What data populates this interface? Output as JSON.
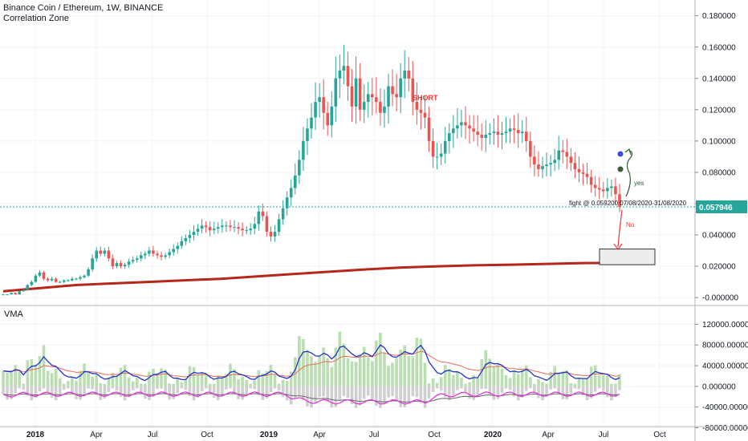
{
  "header": {
    "title": "Binance Coin / Ethereum, 1W, BINANCE",
    "indicator": "Correlation Zone"
  },
  "vma_label": "VMA",
  "colors": {
    "up": "#26a69a",
    "down": "#ef5350",
    "ma_long": "#b7261b",
    "vma_fast": "#2234c9",
    "vma_slow": "#e86a5a",
    "low_fast": "#e23ad6",
    "low_slow": "#666666",
    "vol_up": "#b9dfb0",
    "vol_down": "#cfcfcf",
    "price_tag": "#26a69a"
  },
  "chart_data": [
    {
      "type": "candlestick",
      "title": "Binance Coin / Ethereum, 1W, BINANCE",
      "x_axis": {
        "ticks": [
          "2018",
          "Apr",
          "Jul",
          "Oct",
          "2019",
          "Apr",
          "Jul",
          "Oct",
          "2020",
          "Apr",
          "Jul",
          "Oct"
        ]
      },
      "y_axis": {
        "ticks": [
          "0.180000",
          "0.160000",
          "0.140000",
          "0.120000",
          "0.100000",
          "0.080000",
          "0.060000",
          "0.040000",
          "0.020000",
          "-0.000000"
        ],
        "range": [
          -0.002,
          0.186
        ]
      },
      "current_price": "0.057946",
      "annotations": {
        "short": "SHORT",
        "yes": "yes",
        "no": "No",
        "fight": "fight @ 0.059200 07/08/2020-31/08/2020"
      },
      "close_series_approx": [
        0.002,
        0.002,
        0.003,
        0.002,
        0.004,
        0.005,
        0.008,
        0.01,
        0.014,
        0.016,
        0.012,
        0.011,
        0.012,
        0.01,
        0.01,
        0.011,
        0.011,
        0.012,
        0.012,
        0.013,
        0.014,
        0.018,
        0.025,
        0.03,
        0.028,
        0.03,
        0.025,
        0.02,
        0.022,
        0.02,
        0.021,
        0.023,
        0.024,
        0.025,
        0.027,
        0.028,
        0.03,
        0.028,
        0.027,
        0.026,
        0.027,
        0.029,
        0.031,
        0.033,
        0.036,
        0.038,
        0.04,
        0.042,
        0.044,
        0.046,
        0.045,
        0.043,
        0.044,
        0.045,
        0.046,
        0.046,
        0.045,
        0.045,
        0.044,
        0.043,
        0.043,
        0.044,
        0.047,
        0.055,
        0.052,
        0.042,
        0.039,
        0.042,
        0.05,
        0.057,
        0.064,
        0.07,
        0.078,
        0.088,
        0.1,
        0.108,
        0.115,
        0.125,
        0.128,
        0.118,
        0.11,
        0.122,
        0.14,
        0.145,
        0.148,
        0.135,
        0.122,
        0.14,
        0.12,
        0.125,
        0.13,
        0.128,
        0.125,
        0.118,
        0.122,
        0.135,
        0.13,
        0.128,
        0.14,
        0.145,
        0.14,
        0.125,
        0.12,
        0.118,
        0.115,
        0.1,
        0.09,
        0.09,
        0.092,
        0.1,
        0.105,
        0.108,
        0.11,
        0.112,
        0.11,
        0.108,
        0.106,
        0.104,
        0.102,
        0.104,
        0.105,
        0.106,
        0.104,
        0.105,
        0.106,
        0.108,
        0.107,
        0.105,
        0.106,
        0.1,
        0.09,
        0.085,
        0.082,
        0.084,
        0.085,
        0.086,
        0.088,
        0.094,
        0.093,
        0.09,
        0.086,
        0.082,
        0.08,
        0.079,
        0.077,
        0.072,
        0.07,
        0.069,
        0.068,
        0.07,
        0.071,
        0.066,
        0.058
      ],
      "ma_long_series_approx": [
        0.004,
        0.006,
        0.008,
        0.009,
        0.01,
        0.011,
        0.012,
        0.0135,
        0.015,
        0.0165,
        0.018,
        0.0192,
        0.02,
        0.0206,
        0.021,
        0.0215,
        0.022,
        0.0222
      ],
      "target_zone": {
        "price_range": [
          0.021,
          0.031
        ]
      }
    },
    {
      "type": "bar",
      "title": "VMA",
      "y_axis": {
        "ticks": [
          "120000.000000",
          "80000.000000",
          "40000.000000",
          "0.000000",
          "-40000.000000",
          "-80000.000000"
        ],
        "range": [
          -90000,
          150000
        ]
      }
    }
  ]
}
